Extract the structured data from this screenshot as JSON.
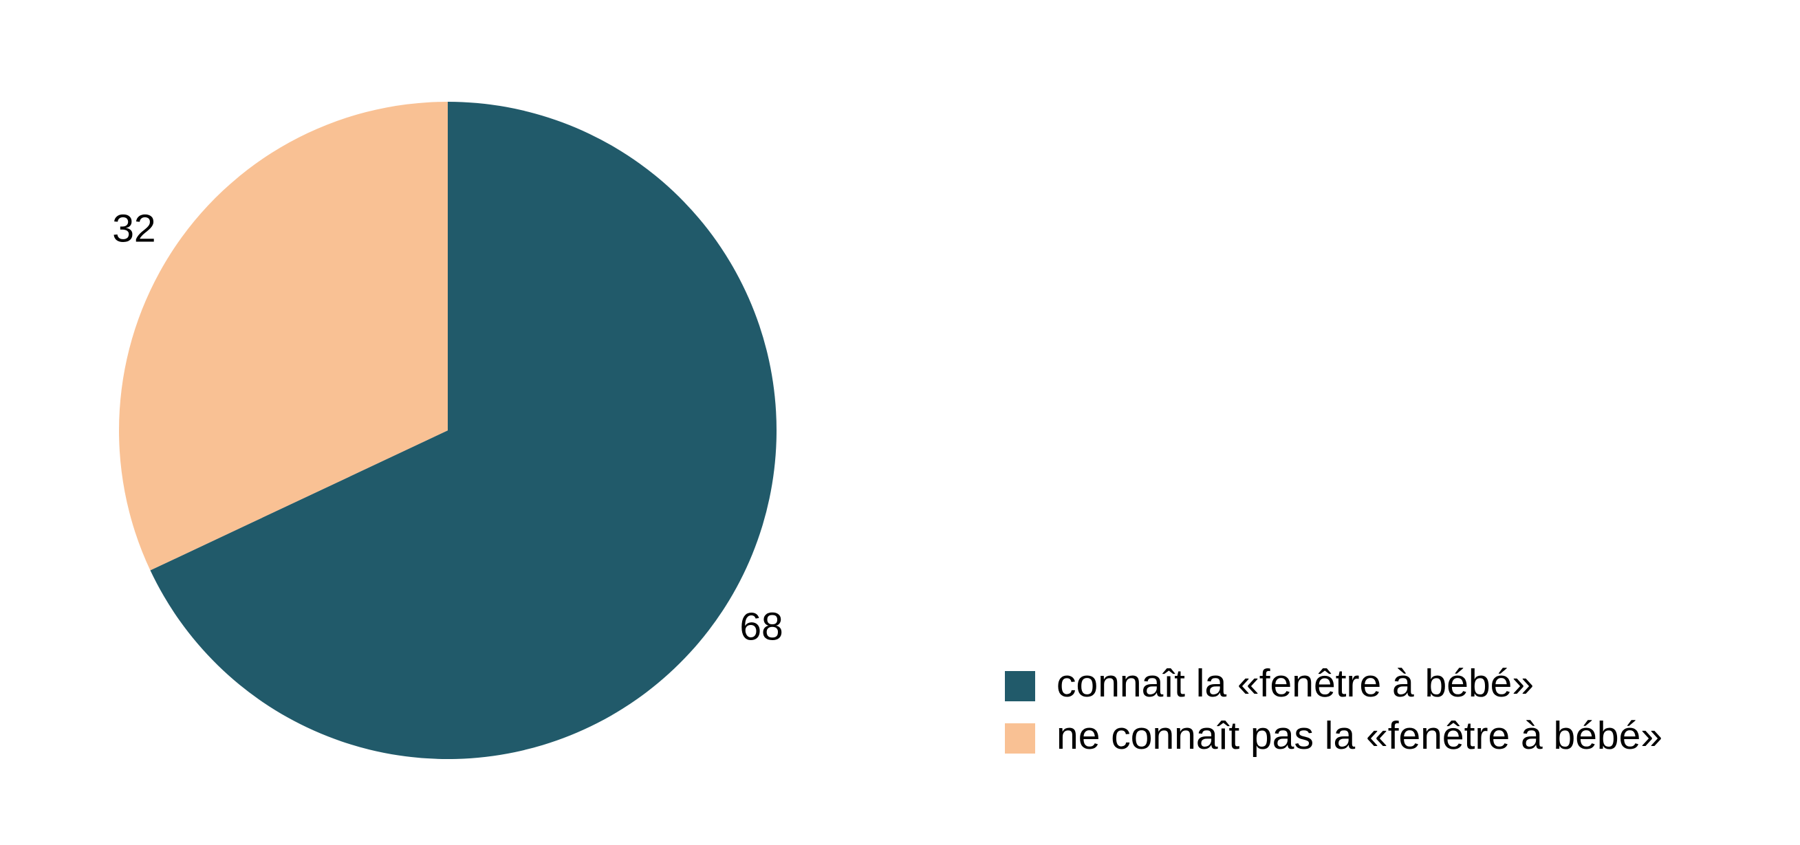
{
  "chart_data": {
    "type": "pie",
    "categories": [
      "connaît la «fenêtre à bébé»",
      "ne connaît pas la «fenêtre à bébé»"
    ],
    "values": [
      68,
      32
    ],
    "colors": [
      "#215a6a",
      "#f9c194"
    ],
    "legend": "bottom-right"
  }
}
